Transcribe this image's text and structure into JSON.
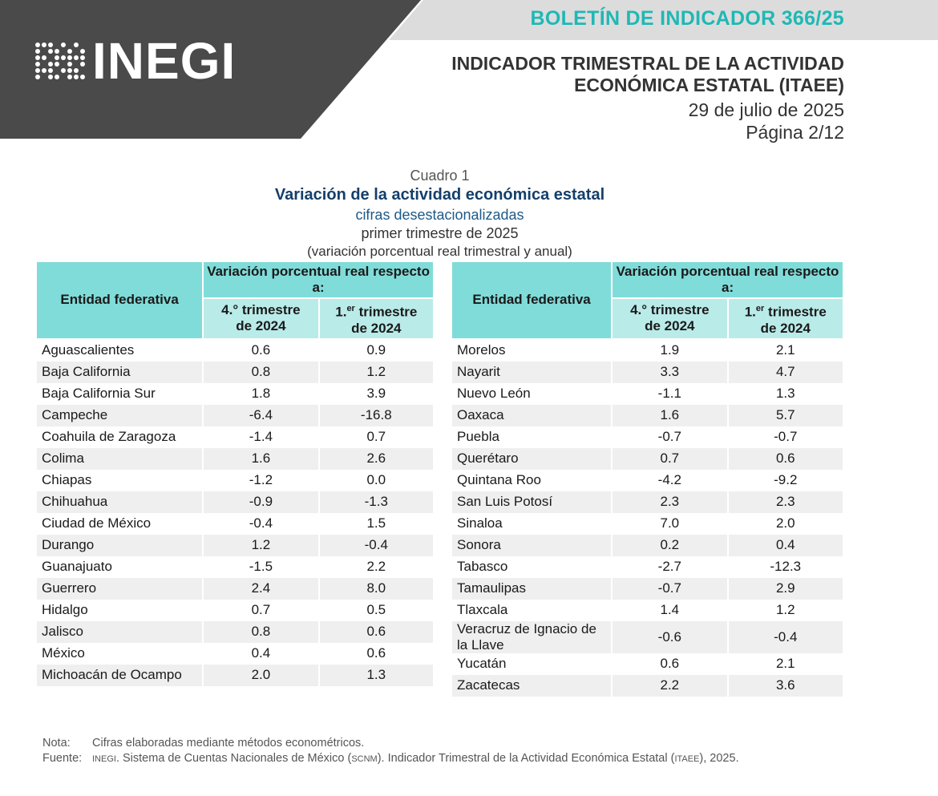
{
  "header": {
    "logo_text": "INEGI",
    "bulletin": "BOLETÍN DE INDICADOR 366/25",
    "title_line1": "INDICADOR TRIMESTRAL DE LA ACTIVIDAD",
    "title_line2": "ECONÓMICA ESTATAL (ITAEE)",
    "date": "29 de julio de 2025",
    "page": "Página 2/12"
  },
  "caption": {
    "number": "Cuadro 1",
    "title": "Variación de la actividad económica estatal",
    "subtitle": "cifras desestacionalizadas",
    "period": "primer trimestre de 2025",
    "note": "(variación porcentual real trimestral y anual)"
  },
  "table": {
    "col_entity": "Entidad federativa",
    "col_group": "Variación porcentual real respecto a:",
    "col_q4_ord": "4.° trimestre",
    "col_q4_year": "de 2024",
    "col_q1_num": "1.",
    "col_q1_sup": "er",
    "col_q1_rest": " trimestre",
    "col_q1_year": "de 2024",
    "left_rows": [
      {
        "entity": "Aguascalientes",
        "q4": "0.6",
        "q1": "0.9"
      },
      {
        "entity": "Baja California",
        "q4": "0.8",
        "q1": "1.2"
      },
      {
        "entity": "Baja California Sur",
        "q4": "1.8",
        "q1": "3.9"
      },
      {
        "entity": "Campeche",
        "q4": "-6.4",
        "q1": "-16.8"
      },
      {
        "entity": "Coahuila de Zaragoza",
        "q4": "-1.4",
        "q1": "0.7"
      },
      {
        "entity": "Colima",
        "q4": "1.6",
        "q1": "2.6"
      },
      {
        "entity": "Chiapas",
        "q4": "-1.2",
        "q1": "0.0"
      },
      {
        "entity": "Chihuahua",
        "q4": "-0.9",
        "q1": "-1.3"
      },
      {
        "entity": "Ciudad de México",
        "q4": "-0.4",
        "q1": "1.5"
      },
      {
        "entity": "Durango",
        "q4": "1.2",
        "q1": "-0.4"
      },
      {
        "entity": "Guanajuato",
        "q4": "-1.5",
        "q1": "2.2"
      },
      {
        "entity": "Guerrero",
        "q4": "2.4",
        "q1": "8.0"
      },
      {
        "entity": "Hidalgo",
        "q4": "0.7",
        "q1": "0.5"
      },
      {
        "entity": "Jalisco",
        "q4": "0.8",
        "q1": "0.6"
      },
      {
        "entity": "México",
        "q4": "0.4",
        "q1": "0.6"
      },
      {
        "entity": "Michoacán de Ocampo",
        "q4": "2.0",
        "q1": "1.3"
      }
    ],
    "right_rows": [
      {
        "entity": "Morelos",
        "q4": "1.9",
        "q1": "2.1"
      },
      {
        "entity": "Nayarit",
        "q4": "3.3",
        "q1": "4.7"
      },
      {
        "entity": "Nuevo León",
        "q4": "-1.1",
        "q1": "1.3"
      },
      {
        "entity": "Oaxaca",
        "q4": "1.6",
        "q1": "5.7"
      },
      {
        "entity": "Puebla",
        "q4": "-0.7",
        "q1": "-0.7"
      },
      {
        "entity": "Querétaro",
        "q4": "0.7",
        "q1": "0.6"
      },
      {
        "entity": "Quintana Roo",
        "q4": "-4.2",
        "q1": "-9.2"
      },
      {
        "entity": "San Luis Potosí",
        "q4": "2.3",
        "q1": "2.3"
      },
      {
        "entity": "Sinaloa",
        "q4": "7.0",
        "q1": "2.0"
      },
      {
        "entity": "Sonora",
        "q4": "0.2",
        "q1": "0.4"
      },
      {
        "entity": "Tabasco",
        "q4": "-2.7",
        "q1": "-12.3"
      },
      {
        "entity": "Tamaulipas",
        "q4": "-0.7",
        "q1": "2.9"
      },
      {
        "entity": "Tlaxcala",
        "q4": "1.4",
        "q1": "1.2"
      },
      {
        "entity": "Veracruz de Ignacio de la Llave",
        "q4": "-0.6",
        "q1": "-0.4"
      },
      {
        "entity": "Yucatán",
        "q4": "0.6",
        "q1": "2.1"
      },
      {
        "entity": "Zacatecas",
        "q4": "2.2",
        "q1": "3.6"
      }
    ]
  },
  "notes": {
    "nota_label": "Nota:",
    "nota_text": "Cifras elaboradas mediante métodos econométricos.",
    "fuente_label": "Fuente:",
    "fuente_inegi": "INEGI",
    "fuente_text1": ". Sistema de Cuentas Nacionales de México (",
    "fuente_scnm": "SCNM",
    "fuente_text2": "). Indicador Trimestral de la Actividad Económica Estatal (",
    "fuente_itaee": "ITAEE",
    "fuente_text3": "), 2025."
  },
  "colors": {
    "banner_dark": "#4a4a4a",
    "banner_light": "#dcdcdc",
    "accent": "#1fb8b5",
    "header_cell": "#80dcd9",
    "subheader_cell": "#b9ebe9",
    "title_blue": "#143f6b"
  }
}
